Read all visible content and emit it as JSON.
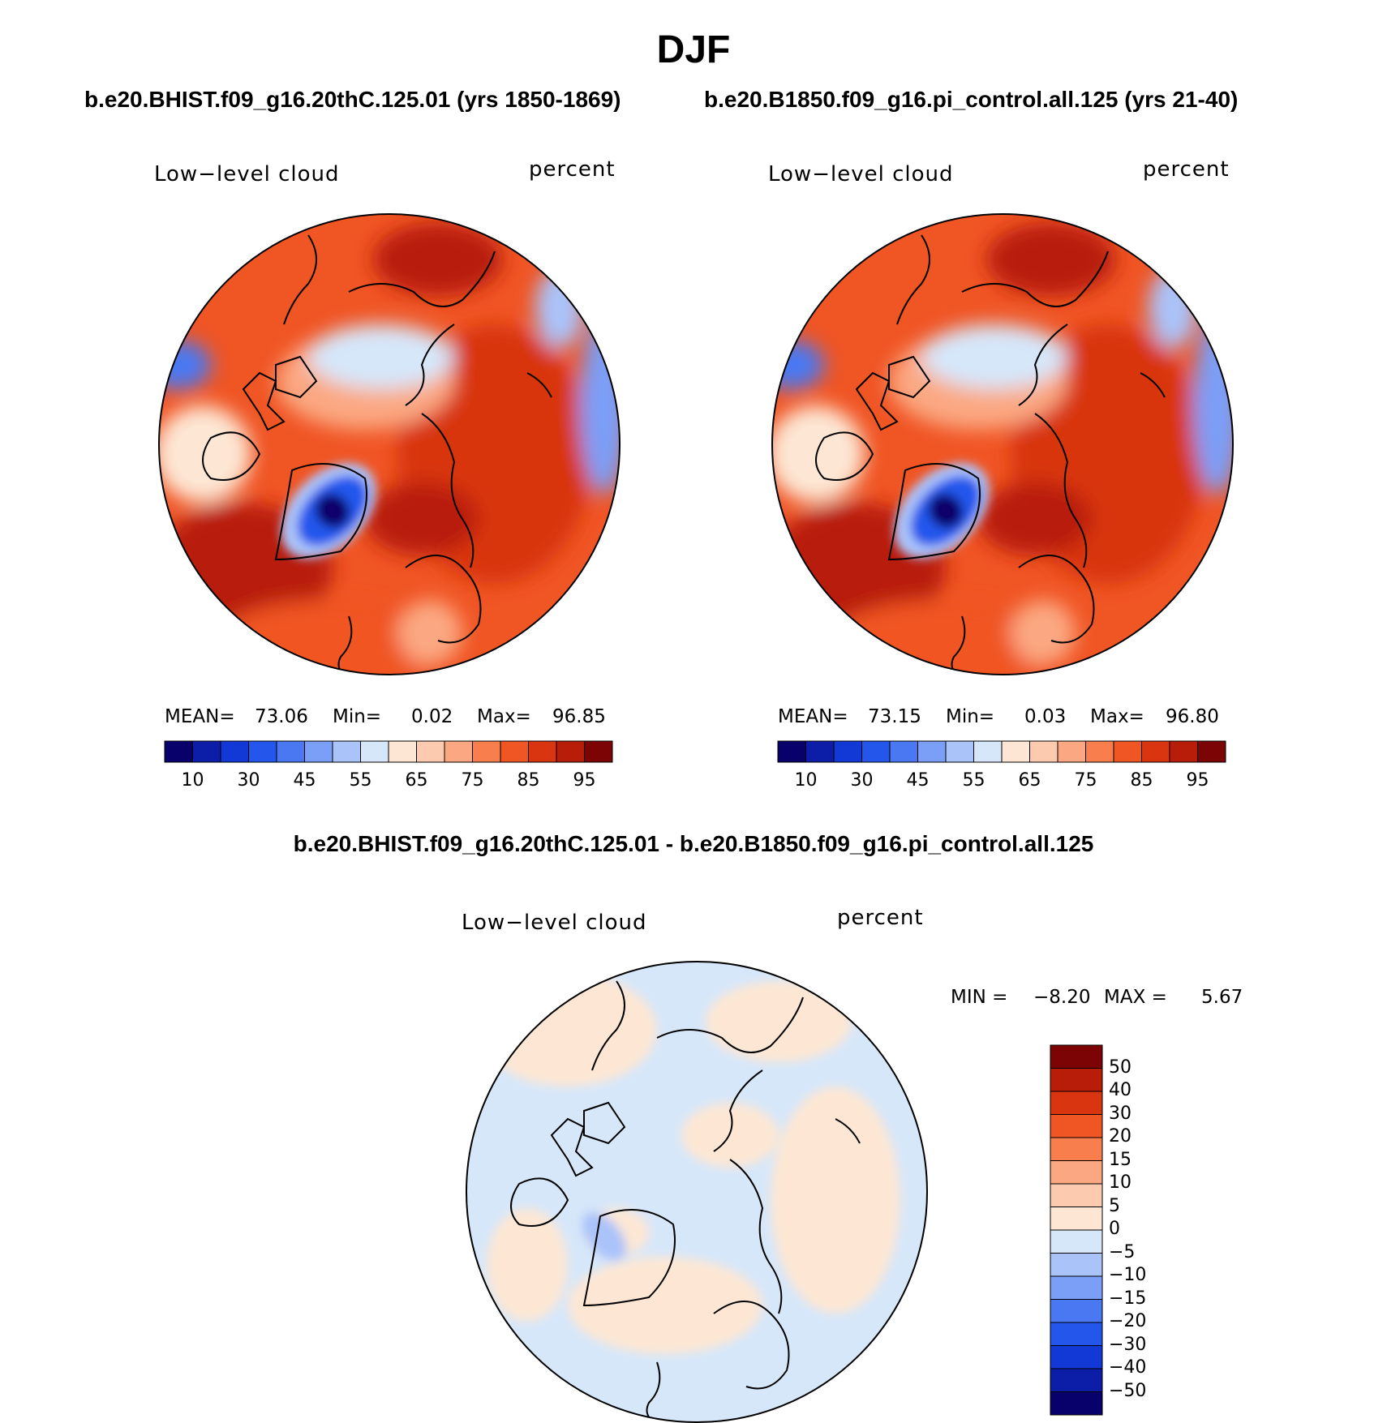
{
  "figure": {
    "title": "DJF",
    "subtitle_left": "b.e20.BHIST.f09_g16.20thC.125.01 (yrs 1850-1869)",
    "subtitle_right": "b.e20.B1850.f09_g16.pi_control.all.125 (yrs 21-40)",
    "diff_title": "b.e20.BHIST.f09_g16.20thC.125.01 - b.e20.B1850.f09_g16.pi_control.all.125"
  },
  "colors": {
    "abs_scale": [
      "#08006b",
      "#0c1ea8",
      "#1238d6",
      "#2456ec",
      "#4a78f2",
      "#7b9ef6",
      "#aac3f9",
      "#d6e7fa",
      "#fde7d4",
      "#fccbaf",
      "#fba882",
      "#f87e4e",
      "#f05524",
      "#d83510",
      "#b81d0a",
      "#7c0404"
    ],
    "diff_scale": [
      "#08006b",
      "#0c1ea8",
      "#1238d6",
      "#2456ec",
      "#4a78f2",
      "#7b9ef6",
      "#aac3f9",
      "#d6e7fa",
      "#fde7d4",
      "#fccbaf",
      "#fba882",
      "#f87e4e",
      "#f05524",
      "#d83510",
      "#b81d0a",
      "#7c0404"
    ]
  },
  "panels": [
    {
      "name": "left",
      "variable": "Low−level cloud",
      "units": "percent",
      "stats": {
        "mean_label": "MEAN=",
        "mean": "73.06",
        "min_label": "Min=",
        "min": "0.02",
        "max_label": "Max=",
        "max": "96.85"
      },
      "colorbar_ticks": [
        "10",
        "30",
        "45",
        "55",
        "65",
        "75",
        "85",
        "95"
      ]
    },
    {
      "name": "right",
      "variable": "Low−level cloud",
      "units": "percent",
      "stats": {
        "mean_label": "MEAN=",
        "mean": "73.15",
        "min_label": "Min=",
        "min": "0.03",
        "max_label": "Max=",
        "max": "96.80"
      },
      "colorbar_ticks": [
        "10",
        "30",
        "45",
        "55",
        "65",
        "75",
        "85",
        "95"
      ]
    }
  ],
  "diff_panel": {
    "variable": "Low−level cloud",
    "units": "percent",
    "stats": {
      "min_label": "MIN =",
      "min": "−8.20",
      "max_label": "MAX =",
      "max": "5.67"
    },
    "colorbar_ticks": [
      "50",
      "40",
      "30",
      "20",
      "15",
      "10",
      "5",
      "0",
      "−5",
      "−10",
      "−15",
      "−20",
      "−30",
      "−40",
      "−50"
    ]
  }
}
